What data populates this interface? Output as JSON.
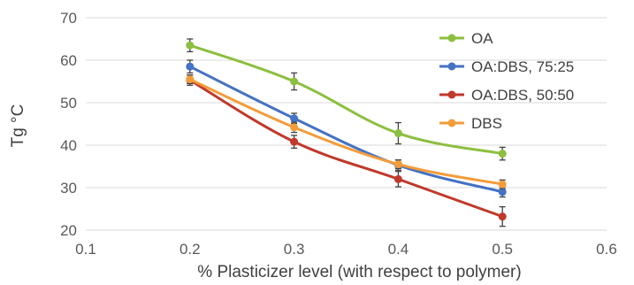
{
  "chart_data": {
    "type": "line",
    "title": "",
    "xlabel": "% Plasticizer level (with respect to polymer)",
    "ylabel": "Tg °C",
    "xlim": [
      0.1,
      0.6
    ],
    "ylim": [
      20,
      70
    ],
    "x_ticks": [
      "0.1",
      "0.2",
      "0.3",
      "0.4",
      "0.5",
      "0.6"
    ],
    "y_ticks": [
      "20",
      "30",
      "40",
      "50",
      "60",
      "70"
    ],
    "grid": "horizontal",
    "legend_position": "top-right",
    "series": [
      {
        "name": "OA",
        "color": "#8cbf3f",
        "x": [
          0.2,
          0.3,
          0.4,
          0.5
        ],
        "y": [
          63.5,
          55,
          42.8,
          38
        ],
        "error": [
          1.5,
          2,
          2.5,
          1.5
        ]
      },
      {
        "name": "OA:DBS, 75:25",
        "color": "#4472c4",
        "x": [
          0.2,
          0.3,
          0.4,
          0.5
        ],
        "y": [
          58.5,
          46.3,
          35.3,
          29
        ],
        "error": [
          1.5,
          1.2,
          1.2,
          1.2
        ]
      },
      {
        "name": "OA:DBS, 50:50",
        "color": "#c0392b",
        "x": [
          0.2,
          0.3,
          0.4,
          0.5
        ],
        "y": [
          55.3,
          40.8,
          32,
          23.2
        ],
        "error": [
          1.2,
          1.5,
          1.8,
          2.3
        ]
      },
      {
        "name": "DBS",
        "color": "#f39c3a",
        "x": [
          0.2,
          0.3,
          0.4,
          0.5
        ],
        "y": [
          55.5,
          44.2,
          35.5,
          30.8
        ],
        "error": [
          1.0,
          1.2,
          1.0,
          1.0
        ]
      }
    ]
  }
}
